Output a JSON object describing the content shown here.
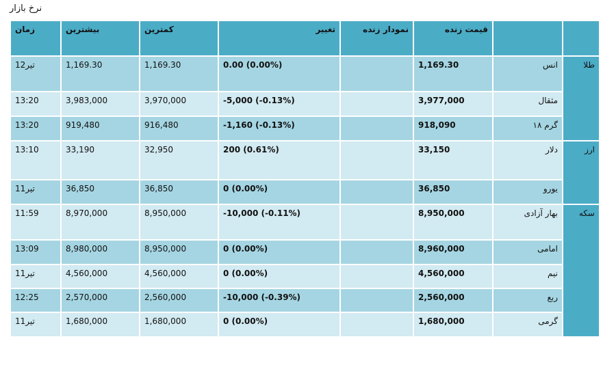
{
  "page": {
    "title": "نرخ بازار"
  },
  "header": {
    "time": "زمان",
    "high": "بیشترین",
    "low": "کمترین",
    "change": "تغییر",
    "live_chart": "نمودار زنده",
    "live_price": "قیمت زنده",
    "item": "",
    "category": ""
  },
  "groups": [
    {
      "category": "طلا",
      "rows": [
        {
          "name": "انس",
          "price": "1,169.30",
          "chart": "",
          "change": "0.00 (0.00%)",
          "low": "1,169.30",
          "high": "1,169.30",
          "time": "12تیر"
        },
        {
          "name": "مثقال",
          "price": "3,977,000",
          "chart": "",
          "change": "-5,000 (-0.13%)",
          "low": "3,970,000",
          "high": "3,983,000",
          "time": "13:20"
        },
        {
          "name": "گرم ۱۸",
          "price": "918,090",
          "chart": "",
          "change": "-1,160 (-0.13%)",
          "low": "916,480",
          "high": "919,480",
          "time": "13:20"
        }
      ]
    },
    {
      "category": "ارز",
      "rows": [
        {
          "name": "دلار",
          "price": "33,150",
          "chart": "",
          "change": "200 (0.61%)",
          "low": "32,950",
          "high": "33,190",
          "time": "13:10"
        },
        {
          "name": "یورو",
          "price": "36,850",
          "chart": "",
          "change": "0 (0.00%)",
          "low": "36,850",
          "high": "36,850",
          "time": "11تیر"
        }
      ]
    },
    {
      "category": "سکه",
      "rows": [
        {
          "name": "بهار آزادی",
          "price": "8,950,000",
          "chart": "",
          "change": "-10,000 (-0.11%)",
          "low": "8,950,000",
          "high": "8,970,000",
          "time": "11:59"
        },
        {
          "name": "امامی",
          "price": "8,960,000",
          "chart": "",
          "change": "0 (0.00%)",
          "low": "8,950,000",
          "high": "8,980,000",
          "time": "13:09"
        },
        {
          "name": "نیم",
          "price": "4,560,000",
          "chart": "",
          "change": "0 (0.00%)",
          "low": "4,560,000",
          "high": "4,560,000",
          "time": "11تیر"
        },
        {
          "name": "ربع",
          "price": "2,560,000",
          "chart": "",
          "change": "-10,000 (-0.39%)",
          "low": "2,560,000",
          "high": "2,570,000",
          "time": "12:25"
        },
        {
          "name": "گرمی",
          "price": "1,680,000",
          "chart": "",
          "change": "0 (0.00%)",
          "low": "1,680,000",
          "high": "1,680,000",
          "time": "11تیر"
        }
      ]
    }
  ]
}
